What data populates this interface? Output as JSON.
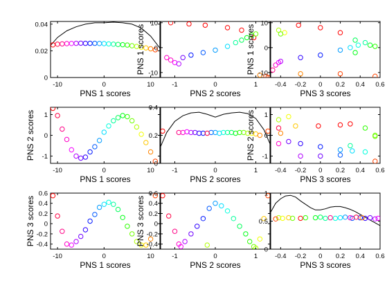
{
  "figure": {
    "background": "#ffffff"
  },
  "chart_data": [
    {
      "type": "line+scatter",
      "xlabel": "PNS 1 scores",
      "ylabel": "",
      "xlim": [
        -11.5,
        12
      ],
      "ylim": [
        0,
        0.042
      ],
      "xticks": [
        -10,
        0,
        10
      ],
      "yticks": [
        0,
        0.02,
        0.04
      ],
      "ytick_labels": [
        "0",
        "0.02",
        "0.04"
      ],
      "curve": {
        "x": [
          -11.5,
          -10,
          -8,
          -6,
          -4,
          -2,
          0,
          2,
          4,
          6,
          8,
          10,
          12
        ],
        "y": [
          0.024,
          0.03,
          0.035,
          0.038,
          0.04,
          0.041,
          0.041,
          0.0415,
          0.041,
          0.04,
          0.037,
          0.031,
          0.022
        ]
      },
      "points": {
        "x": [
          -11,
          -10,
          -9,
          -8,
          -7,
          -6,
          -5,
          -4,
          -3,
          -2,
          -1,
          0,
          1,
          2,
          3,
          4,
          5,
          6,
          7,
          8,
          9,
          10,
          11
        ],
        "y": [
          0.0245,
          0.025,
          0.0252,
          0.0254,
          0.0255,
          0.0256,
          0.0257,
          0.0256,
          0.0256,
          0.0256,
          0.0255,
          0.0254,
          0.0252,
          0.025,
          0.0248,
          0.0246,
          0.0243,
          0.0238,
          0.0233,
          0.0227,
          0.0222,
          0.0215,
          0.0208
        ],
        "color_index": [
          0,
          1,
          2,
          3,
          4,
          5,
          6,
          7,
          8,
          9,
          10,
          11,
          12,
          13,
          14,
          15,
          16,
          17,
          18,
          19,
          20,
          21,
          22
        ]
      }
    },
    {
      "type": "scatter",
      "xlabel": "PNS 2 scores",
      "ylabel": "PNS 1 scores",
      "xlim": [
        -1.35,
        1.35
      ],
      "ylim": [
        -12,
        10.5
      ],
      "xticks": [
        -1,
        0,
        1
      ],
      "yticks": [
        -10,
        0,
        10
      ],
      "points": {
        "x": [
          -1.1,
          -0.65,
          -0.25,
          0.3,
          0.65,
          0.95,
          -1.2,
          -1.1,
          -1.0,
          -0.9,
          -0.8,
          -0.6,
          -0.3,
          0.0,
          0.3,
          0.5,
          0.65,
          0.78,
          0.9,
          1.0,
          1.1,
          1.25,
          1.3
        ],
        "y": [
          10,
          9.5,
          9,
          8,
          7,
          4,
          -4,
          -5,
          -6,
          -6.5,
          -4,
          -3,
          -2,
          -1,
          0.5,
          2,
          3,
          4,
          5,
          5.5,
          -11,
          -11.5,
          -12
        ],
        "color_index": [
          0,
          0,
          0,
          0,
          0,
          0,
          3,
          3,
          4,
          5,
          6,
          8,
          9,
          10,
          11,
          13,
          14,
          15,
          16,
          17,
          21,
          22,
          22
        ]
      }
    },
    {
      "type": "scatter",
      "xlabel": "PNS 3 scores",
      "ylabel": "PNS 1 scores",
      "xlim": [
        -0.5,
        0.6
      ],
      "ylim": [
        -12,
        10.5
      ],
      "xticks": [
        -0.4,
        -0.2,
        0,
        0.2,
        0.4,
        0.6
      ],
      "xtick_labels": [
        "-0.4",
        "-0.2",
        "0",
        "0.2",
        "0.4",
        "0.6"
      ],
      "yticks": [
        -10,
        0,
        10
      ],
      "points": {
        "x": [
          -0.42,
          -0.36,
          -0.4,
          -0.22,
          0.0,
          0.2,
          0.35,
          0.5,
          -0.48,
          -0.45,
          -0.42,
          -0.4,
          -0.2,
          0.0,
          0.2,
          0.3,
          0.38,
          0.45,
          0.35,
          0.55,
          -0.2,
          0.2,
          0.55
        ],
        "y": [
          7,
          6,
          5.5,
          9,
          8,
          6,
          3,
          1,
          -9,
          -7,
          -6,
          -5.5,
          -4,
          -3,
          -1,
          0,
          1,
          2,
          -2,
          0.5,
          -10.5,
          -10.5,
          -11.5
        ],
        "color_index": [
          18,
          19,
          17,
          0,
          0,
          0,
          14,
          15,
          2,
          3,
          4,
          5,
          7,
          8,
          10,
          11,
          12,
          13,
          15,
          16,
          21,
          22,
          22
        ]
      }
    },
    {
      "type": "scatter",
      "xlabel": "PNS 1 scores",
      "ylabel": "PNS 2 scores",
      "xlim": [
        -11.5,
        12
      ],
      "ylim": [
        -1.35,
        1.35
      ],
      "xticks": [
        -10,
        0,
        10
      ],
      "yticks": [
        -1,
        0,
        1
      ],
      "points": {
        "x": [
          -11,
          -10,
          -9,
          -8,
          -7,
          -6,
          -5,
          -4,
          -3,
          -2,
          -1,
          0,
          1,
          2,
          3,
          4,
          5,
          6,
          7,
          8,
          9,
          10,
          11
        ],
        "y": [
          1.3,
          0.95,
          0.3,
          -0.2,
          -0.7,
          -1.0,
          -1.1,
          -1.05,
          -0.8,
          -0.55,
          -0.25,
          0.15,
          0.45,
          0.7,
          0.85,
          0.95,
          0.9,
          0.7,
          0.4,
          0.05,
          -0.35,
          -0.8,
          -1.25
        ],
        "color_index": [
          0,
          1,
          2,
          3,
          4,
          5,
          6,
          7,
          8,
          9,
          10,
          11,
          12,
          13,
          14,
          15,
          16,
          17,
          18,
          19,
          20,
          21,
          22
        ]
      }
    },
    {
      "type": "line+scatter",
      "xlabel": "PNS 2 scores",
      "ylabel": "",
      "xlim": [
        -1.35,
        1.35
      ],
      "ylim": [
        0,
        0.4
      ],
      "xticks": [
        -1,
        0,
        1
      ],
      "yticks": [
        0,
        0.2,
        0.4
      ],
      "ytick_labels": [
        "0",
        "0.2",
        "0.4"
      ],
      "curve": {
        "x": [
          -1.35,
          -1.2,
          -1.0,
          -0.8,
          -0.6,
          -0.4,
          -0.2,
          0,
          0.2,
          0.4,
          0.6,
          0.8,
          1.0,
          1.2,
          1.35
        ],
        "y": [
          0.12,
          0.22,
          0.3,
          0.34,
          0.36,
          0.365,
          0.35,
          0.33,
          0.35,
          0.36,
          0.365,
          0.355,
          0.32,
          0.24,
          0.14
        ]
      },
      "points": {
        "x": [
          -1.3,
          -0.9,
          -0.8,
          -0.7,
          -0.6,
          -0.5,
          -0.4,
          -0.3,
          -0.1,
          0.0,
          0.1,
          0.2,
          0.3,
          0.4,
          0.5,
          0.6,
          0.7,
          0.8,
          0.9,
          1.0,
          1.1,
          1.3,
          -0.2
        ],
        "y": [
          0.23,
          0.22,
          0.22,
          0.225,
          0.22,
          0.22,
          0.215,
          0.215,
          0.22,
          0.22,
          0.215,
          0.22,
          0.22,
          0.22,
          0.215,
          0.22,
          0.22,
          0.215,
          0.215,
          0.21,
          0.2,
          0.23,
          0.215
        ],
        "color_index": [
          0,
          2,
          3,
          4,
          5,
          6,
          7,
          8,
          9,
          10,
          11,
          12,
          13,
          14,
          15,
          16,
          17,
          18,
          19,
          20,
          21,
          22,
          1
        ]
      }
    },
    {
      "type": "scatter",
      "xlabel": "PNS 3 scores",
      "ylabel": "PNS 2 scores",
      "xlim": [
        -0.5,
        0.6
      ],
      "ylim": [
        -1.35,
        1.35
      ],
      "xticks": [
        -0.4,
        -0.2,
        0,
        0.2,
        0.4,
        0.6
      ],
      "xtick_labels": [
        "-0.4",
        "-0.2",
        "0",
        "0.2",
        "0.4",
        "0.6"
      ],
      "yticks": [
        -1,
        0,
        1
      ],
      "points": {
        "x": [
          -0.42,
          -0.32,
          -0.25,
          -0.02,
          0.2,
          0.3,
          0.45,
          0.55,
          -0.42,
          -0.32,
          -0.2,
          0.0,
          0.2,
          0.32,
          0.45,
          -0.42,
          -0.2,
          0.0,
          0.2,
          0.3,
          0.55,
          -0.4,
          0.55
        ],
        "y": [
          0.75,
          0.9,
          0.45,
          0.45,
          0.5,
          0.55,
          0.35,
          -0.05,
          0.35,
          -0.3,
          -0.4,
          -0.55,
          -0.7,
          -0.75,
          -0.8,
          -0.4,
          -1.0,
          -1.0,
          -0.95,
          -0.5,
          -1.25,
          0.1,
          0.0
        ],
        "color_index": [
          18,
          19,
          20,
          0,
          0,
          0,
          16,
          17,
          1,
          6,
          7,
          8,
          10,
          11,
          12,
          3,
          5,
          6,
          9,
          13,
          22,
          21,
          17
        ]
      }
    },
    {
      "type": "scatter",
      "xlabel": "PNS 1 scores",
      "ylabel": "PNS 3 scores",
      "xlim": [
        -11.5,
        12
      ],
      "ylim": [
        -0.5,
        0.6
      ],
      "xticks": [
        -10,
        0,
        10
      ],
      "yticks": [
        -0.4,
        -0.2,
        0,
        0.2,
        0.4,
        0.6
      ],
      "ytick_labels": [
        "-0.4",
        "-0.2",
        "0",
        "0.2",
        "0.4",
        "0.6"
      ],
      "points": {
        "x": [
          -11,
          -10,
          -9,
          -8,
          -7,
          -6,
          -5,
          -4,
          -3,
          -2,
          -1,
          0,
          1,
          2,
          3,
          4,
          5,
          6,
          7,
          8,
          9,
          10,
          11
        ],
        "y": [
          0.55,
          0.15,
          -0.15,
          -0.4,
          -0.42,
          -0.35,
          -0.25,
          -0.12,
          0.05,
          0.18,
          0.32,
          0.38,
          0.42,
          0.38,
          0.28,
          0.12,
          -0.05,
          -0.2,
          -0.35,
          -0.42,
          -0.42,
          -0.3,
          0.55
        ],
        "color_index": [
          0,
          1,
          2,
          3,
          4,
          5,
          6,
          7,
          8,
          9,
          10,
          11,
          12,
          13,
          14,
          15,
          16,
          17,
          18,
          19,
          20,
          21,
          22
        ]
      }
    },
    {
      "type": "scatter",
      "xlabel": "PNS 2 scores",
      "ylabel": "PNS 3 scores",
      "xlim": [
        -1.35,
        1.35
      ],
      "ylim": [
        -0.5,
        0.6
      ],
      "xticks": [
        -1,
        0,
        1
      ],
      "yticks": [
        -0.4,
        -0.2,
        0,
        0.2,
        0.4,
        0.6
      ],
      "ytick_labels": [
        "-0.4",
        "-0.2",
        "0",
        "0.2",
        "0.4",
        "0.6"
      ],
      "points": {
        "x": [
          -1.3,
          -1.15,
          -1.0,
          -0.9,
          -0.85,
          -0.75,
          -0.6,
          -0.45,
          -0.3,
          -0.15,
          0.0,
          0.15,
          0.3,
          0.45,
          0.6,
          0.75,
          0.85,
          0.95,
          1.0,
          1.1,
          1.2,
          1.3,
          -0.2
        ],
        "y": [
          0.55,
          0.15,
          -0.15,
          -0.4,
          -0.45,
          -0.35,
          -0.2,
          -0.05,
          0.1,
          0.3,
          0.4,
          0.35,
          0.25,
          0.1,
          -0.05,
          -0.2,
          -0.35,
          -0.45,
          -0.48,
          -0.3,
          0.1,
          0.55,
          -0.42
        ],
        "color_index": [
          0,
          1,
          2,
          3,
          4,
          5,
          6,
          7,
          8,
          9,
          10,
          11,
          12,
          13,
          14,
          15,
          16,
          17,
          18,
          19,
          20,
          22,
          18
        ]
      }
    },
    {
      "type": "line+scatter",
      "xlabel": "PNS 3 scores",
      "ylabel": "",
      "xlim": [
        -0.5,
        0.6
      ],
      "ylim": [
        0,
        1
      ],
      "xticks": [
        -0.4,
        -0.2,
        0,
        0.2,
        0.4,
        0.6
      ],
      "xtick_labels": [
        "-0.4",
        "-0.2",
        "0",
        "0.2",
        "0.4",
        "0.6"
      ],
      "yticks": [
        0,
        0.5,
        1
      ],
      "ytick_labels": [
        "0",
        "0.5",
        "1"
      ],
      "curve": {
        "x": [
          -0.5,
          -0.45,
          -0.4,
          -0.35,
          -0.3,
          -0.25,
          -0.2,
          -0.15,
          -0.1,
          -0.05,
          0,
          0.05,
          0.1,
          0.15,
          0.2,
          0.25,
          0.3,
          0.35,
          0.4,
          0.45,
          0.5,
          0.55,
          0.6
        ],
        "y": [
          0.66,
          0.82,
          0.9,
          0.95,
          0.96,
          0.93,
          0.86,
          0.8,
          0.74,
          0.7,
          0.7,
          0.72,
          0.75,
          0.76,
          0.76,
          0.74,
          0.71,
          0.67,
          0.62,
          0.57,
          0.52,
          0.47,
          0.42
        ]
      },
      "points": {
        "x": [
          -0.42,
          -0.38,
          -0.32,
          -0.28,
          -0.2,
          -0.15,
          -0.05,
          0.0,
          0.05,
          0.15,
          0.2,
          0.25,
          0.32,
          0.4,
          0.45,
          0.5,
          0.55,
          0.58,
          -0.45,
          0.1,
          0.3,
          0.36,
          0.42
        ],
        "y": [
          0.56,
          0.55,
          0.56,
          0.55,
          0.55,
          0.56,
          0.56,
          0.57,
          0.55,
          0.55,
          0.56,
          0.57,
          0.55,
          0.56,
          0.55,
          0.56,
          0.54,
          0.55,
          0.54,
          0.56,
          0.56,
          0.57,
          0.56
        ],
        "color_index": [
          18,
          19,
          20,
          17,
          0,
          16,
          15,
          14,
          13,
          12,
          11,
          10,
          9,
          8,
          7,
          6,
          5,
          4,
          22,
          2,
          3,
          1,
          21
        ]
      }
    }
  ]
}
